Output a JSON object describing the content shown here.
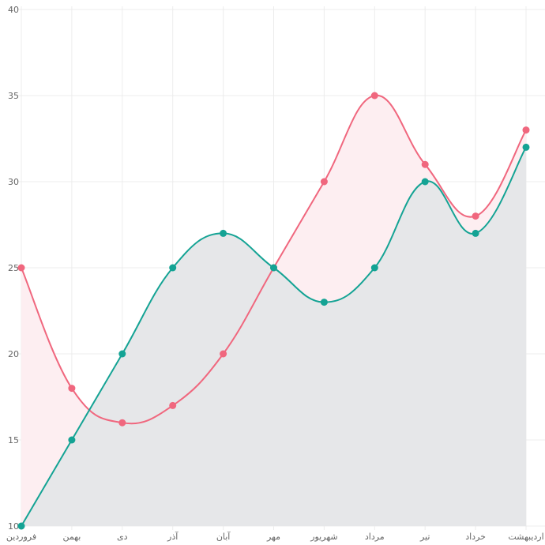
{
  "chart_data": {
    "type": "line",
    "categories": [
      "فروردین",
      "بهمن",
      "دی",
      "آذر",
      "آبان",
      "مهر",
      "شهریور",
      "مرداد",
      "تیر",
      "خرداد",
      "اردیبهشت"
    ],
    "series": [
      {
        "values": [
          25,
          18,
          16,
          17,
          20,
          25,
          30,
          35,
          31,
          28,
          33
        ],
        "color": "#f0677e",
        "fill_color": "#fdeef1"
      },
      {
        "values": [
          10,
          15,
          20,
          25,
          27,
          25,
          23,
          25,
          30,
          27,
          32
        ],
        "color": "#14a394",
        "fill_color": "#e3f5f2"
      }
    ],
    "area_below_color": "#e6e7e9",
    "ylim": [
      10,
      40
    ],
    "yticks": [
      10,
      15,
      20,
      25,
      30,
      35,
      40
    ],
    "grid": true,
    "curve": "smooth"
  }
}
